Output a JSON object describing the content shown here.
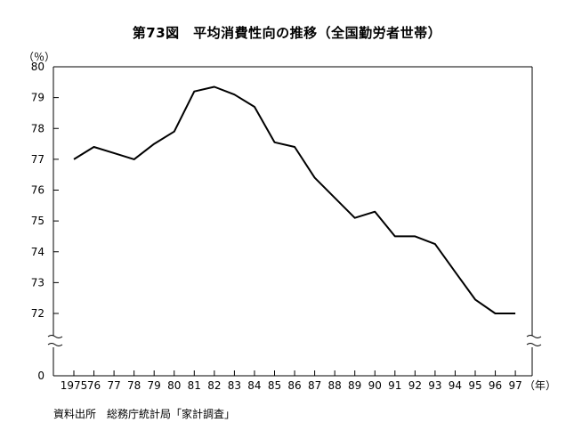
{
  "chart_data": {
    "type": "line",
    "title": "第73図　平均消費性向の推移（全国勤労者世帯）",
    "ylabel": "（％）",
    "xunit": "（年）",
    "source": "資料出所　総務庁統計局「家計調査」",
    "categories": [
      "1975",
      "76",
      "77",
      "78",
      "79",
      "80",
      "81",
      "82",
      "83",
      "84",
      "85",
      "86",
      "87",
      "88",
      "89",
      "90",
      "91",
      "92",
      "93",
      "94",
      "95",
      "96",
      "97"
    ],
    "series": [
      {
        "values": [
          77.0,
          77.4,
          77.2,
          77.0,
          77.5,
          77.9,
          79.2,
          79.35,
          79.1,
          78.7,
          77.55,
          77.4,
          76.4,
          75.75,
          75.1,
          75.3,
          74.5,
          74.5,
          74.25,
          73.35,
          72.45,
          72.0,
          72.0
        ]
      }
    ],
    "y_ticks": [
      "80",
      "79",
      "78",
      "77",
      "76",
      "75",
      "74",
      "73",
      "72"
    ],
    "y_break_value": "0",
    "ylim": [
      72,
      80
    ],
    "grid": false,
    "axis_break": true
  }
}
